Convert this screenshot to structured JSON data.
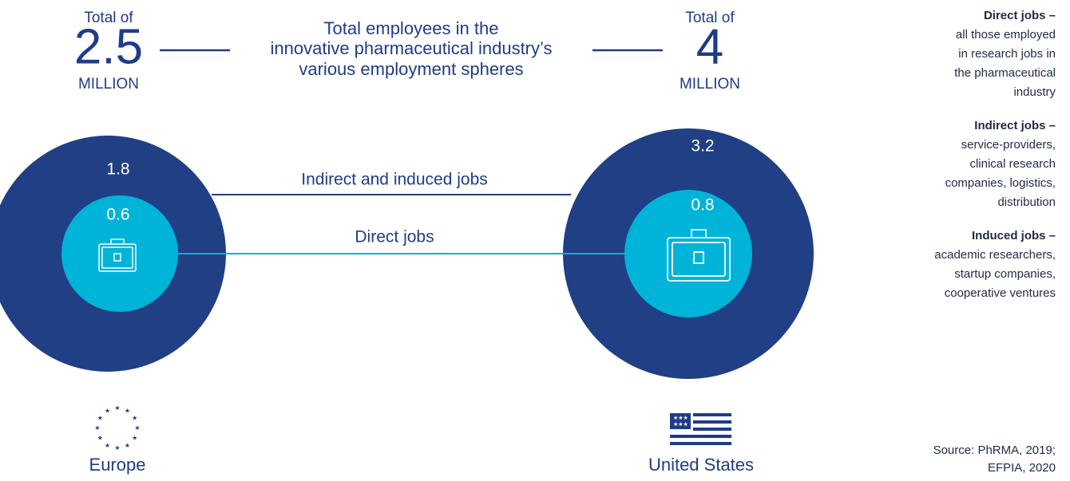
{
  "header": {
    "title_lines": [
      "Total employees in the",
      "innovative pharmaceutical industry’s",
      "various employment spheres"
    ]
  },
  "regions": [
    {
      "total_prefix": "Total of",
      "total": "2.5",
      "unit": "MILLION",
      "indirect": "1.8",
      "direct": "0.6",
      "name": "Europe"
    },
    {
      "total_prefix": "Total of",
      "total": "4",
      "unit": "MILLION",
      "indirect": "3.2",
      "direct": "0.8",
      "name": "United States"
    }
  ],
  "connectors": {
    "indirect": "Indirect and induced jobs",
    "direct": "Direct jobs"
  },
  "notes": [
    {
      "term": "Direct jobs –",
      "lines": [
        "all those employed",
        "in research jobs in",
        "the pharmaceutical",
        "industry"
      ]
    },
    {
      "term": "Indirect jobs –",
      "lines": [
        "service-providers,",
        "clinical research",
        "companies, logistics,",
        "distribution"
      ]
    },
    {
      "term": "Induced jobs –",
      "lines": [
        "academic researchers,",
        "startup companies,",
        "cooperative ventures"
      ]
    }
  ],
  "source_lines": [
    "Source: PhRMA, 2019;",
    "EFPIA, 2020"
  ]
}
